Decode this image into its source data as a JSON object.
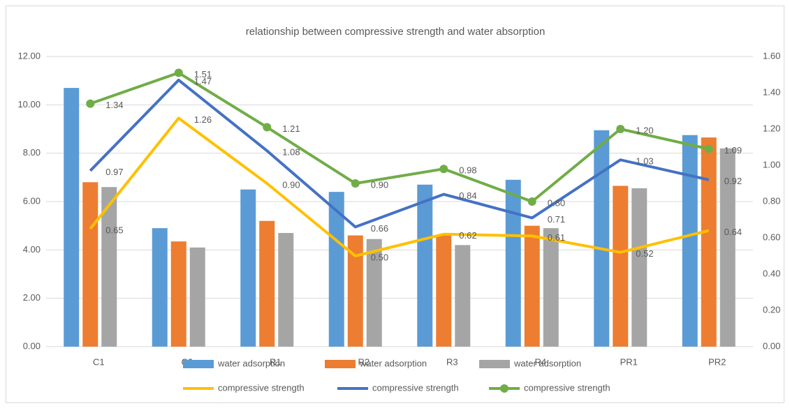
{
  "chart_data": {
    "type": "combo",
    "title": "relationship between compressive strength and water absorption",
    "categories": [
      "C1",
      "C2",
      "R1",
      "R2",
      "R3",
      "R4",
      "PR1",
      "PR2"
    ],
    "ylim": [
      0,
      12
    ],
    "yticks": [
      {
        "value": 0,
        "label": "0.00"
      },
      {
        "value": 2,
        "label": "2.00"
      },
      {
        "value": 4,
        "label": "4.00"
      },
      {
        "value": 6,
        "label": "6.00"
      },
      {
        "value": 8,
        "label": "8.00"
      },
      {
        "value": 10,
        "label": "10.00"
      },
      {
        "value": 12,
        "label": "12.00"
      }
    ],
    "y2lim": [
      0,
      1.6
    ],
    "y2ticks": [
      {
        "value": 0,
        "label": "0.00"
      },
      {
        "value": 0.2,
        "label": "0.20"
      },
      {
        "value": 0.4,
        "label": "0.40"
      },
      {
        "value": 0.6,
        "label": "0.60"
      },
      {
        "value": 0.8,
        "label": "0.80"
      },
      {
        "value": 1.0,
        "label": "1.00"
      },
      {
        "value": 1.2,
        "label": "1.20"
      },
      {
        "value": 1.4,
        "label": "1.40"
      },
      {
        "value": 1.6,
        "label": "1.60"
      }
    ],
    "grid": true,
    "legend": "bottom",
    "series": [
      {
        "name": "water adsorption",
        "type": "bar",
        "color": "#5b9bd5",
        "values": [
          10.7,
          4.9,
          6.5,
          6.4,
          6.7,
          6.9,
          8.95,
          8.75
        ]
      },
      {
        "name": "water adsorption",
        "type": "bar",
        "color": "#ed7d31",
        "values": [
          6.8,
          4.35,
          5.2,
          4.6,
          4.6,
          5.0,
          6.65,
          8.65
        ]
      },
      {
        "name": "water adsorption",
        "type": "bar",
        "color": "#a5a5a5",
        "values": [
          6.6,
          4.1,
          4.7,
          4.45,
          4.2,
          4.9,
          6.55,
          8.2
        ]
      },
      {
        "name": "compressive strength",
        "type": "line",
        "axis": "y2",
        "color": "#ffc000",
        "values": [
          0.65,
          1.26,
          0.9,
          0.5,
          0.62,
          0.61,
          0.52,
          0.64
        ],
        "value_labels": [
          "0.65",
          "1.26",
          "0.90",
          "0.50",
          "0.62",
          "0.61",
          "0.52",
          "0.64"
        ]
      },
      {
        "name": "compressive strength",
        "type": "line",
        "axis": "y2",
        "color": "#4472c4",
        "values": [
          0.97,
          1.47,
          1.08,
          0.66,
          0.84,
          0.71,
          1.03,
          0.92
        ],
        "value_labels": [
          "0.97",
          "1.47",
          "1.08",
          "0.66",
          "0.84",
          "0.71",
          "1.03",
          "0.92"
        ]
      },
      {
        "name": "compressive strength",
        "type": "line",
        "axis": "y2",
        "marker": true,
        "color": "#70ad47",
        "values": [
          1.34,
          1.51,
          1.21,
          0.9,
          0.98,
          0.8,
          1.2,
          1.09
        ],
        "value_labels": [
          "1.34",
          "1.51",
          "1.21",
          "0.90",
          "0.98",
          "0.80",
          "1.20",
          "1.09"
        ]
      }
    ]
  }
}
